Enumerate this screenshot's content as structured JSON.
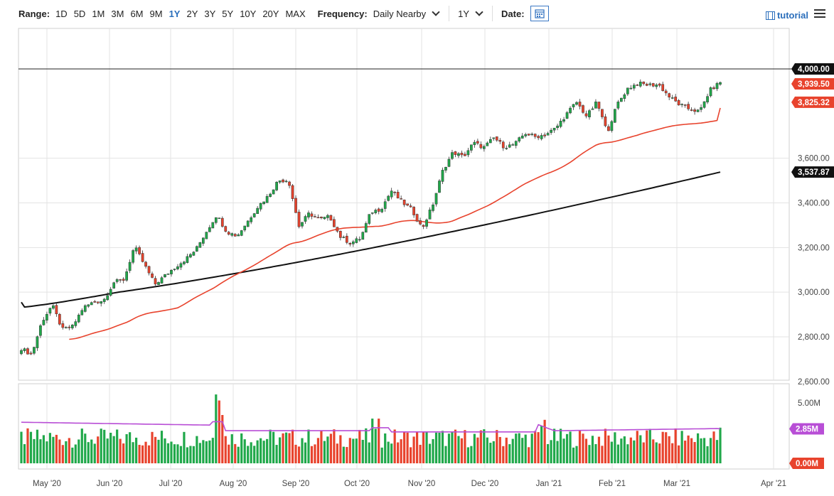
{
  "toolbar": {
    "range_label": "Range:",
    "ranges": [
      "1D",
      "5D",
      "1M",
      "3M",
      "6M",
      "9M",
      "1Y",
      "2Y",
      "3Y",
      "5Y",
      "10Y",
      "20Y",
      "MAX"
    ],
    "active_range": "1Y",
    "frequency_label": "Frequency:",
    "frequency_value": "Daily Nearby",
    "period_value": "1Y",
    "date_label": "Date:",
    "tutorial_label": "tutorial"
  },
  "colors": {
    "up": "#20a84a",
    "down": "#e8432d",
    "ma50": "#e8432d",
    "ma200": "#111111",
    "volume_avg": "#b84ed6",
    "accent": "#2a6ebb"
  },
  "chart_data": {
    "type": "candlestick",
    "x_labels": [
      "May '20",
      "Jun '20",
      "Jul '20",
      "Aug '20",
      "Sep '20",
      "Oct '20",
      "Nov '20",
      "Dec '20",
      "Jan '21",
      "Feb '21",
      "Mar '21",
      "Apr '21"
    ],
    "price_ticks": [
      "4,000.00",
      "3,600.00",
      "3,400.00",
      "3,200.00",
      "3,000.00",
      "2,800.00",
      "2,600.00"
    ],
    "ylim": [
      2600,
      4100
    ],
    "horizontal_line": {
      "value": 4000,
      "label": "4,000.00"
    },
    "price_close": [
      2748,
      2720,
      2868,
      2943,
      2832,
      2846,
      2930,
      2955,
      2963,
      3044,
      3057,
      3205,
      3120,
      3035,
      3075,
      3114,
      3148,
      3192,
      3272,
      3346,
      3270,
      3252,
      3316,
      3383,
      3430,
      3500,
      3502,
      3295,
      3353,
      3325,
      3339,
      3250,
      3220,
      3241,
      3359,
      3373,
      3455,
      3405,
      3369,
      3285,
      3387,
      3544,
      3627,
      3606,
      3669,
      3648,
      3692,
      3650,
      3663,
      3712,
      3696,
      3706,
      3735,
      3795,
      3852,
      3788,
      3851,
      3715,
      3844,
      3913,
      3935,
      3928,
      3930,
      3877,
      3841,
      3820,
      3809,
      3905,
      3939.5
    ],
    "ma50_last": {
      "value": 3825.32,
      "label": "3,825.32"
    },
    "ma200_last": {
      "value": 3537.87,
      "label": "3,537.87"
    },
    "last_price_label": "3,939.50",
    "volume_ticks": [
      "5.00M",
      "0.00M"
    ],
    "volume_avg_label": "2.85M",
    "volume_ylim": [
      0,
      6.2
    ]
  }
}
